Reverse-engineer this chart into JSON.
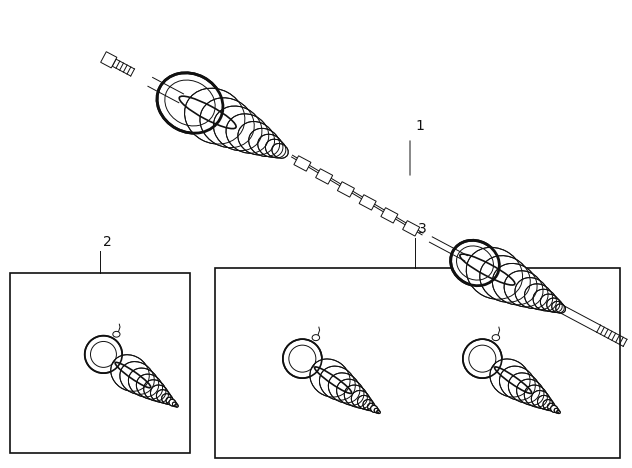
{
  "background_color": "#ffffff",
  "line_color": "#111111",
  "label_1": "1",
  "label_2": "2",
  "label_3": "3",
  "label_fontsize": 10,
  "fig_width": 6.32,
  "fig_height": 4.68,
  "dpi": 100
}
